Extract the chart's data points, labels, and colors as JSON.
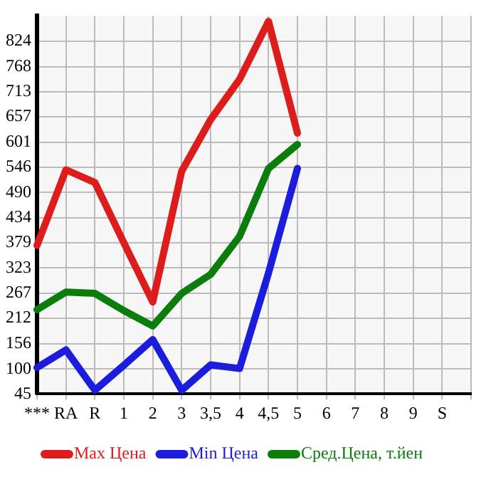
{
  "chart_data": {
    "type": "line",
    "categories": [
      "***",
      "RA",
      "R",
      "1",
      "2",
      "3",
      "3,5",
      "4",
      "4,5",
      "5",
      "6",
      "7",
      "8",
      "9",
      "S",
      null
    ],
    "ylim": [
      45,
      880
    ],
    "yticks": [
      45,
      100,
      156,
      212,
      267,
      323,
      379,
      434,
      490,
      546,
      601,
      657,
      713,
      768,
      824
    ],
    "grid": true,
    "legend": "bottom",
    "marker": "none",
    "line_style": "solid",
    "series": [
      {
        "name": "Max Цена",
        "color": "#dd1c1c",
        "values": [
          373,
          540,
          512,
          379,
          248,
          537,
          651,
          740,
          868,
          621,
          null,
          null,
          null,
          null,
          null,
          null
        ]
      },
      {
        "name": "Min Цена",
        "color": "#1c1cdd",
        "values": [
          103,
          142,
          53,
          108,
          165,
          53,
          109,
          101,
          312,
          543,
          null,
          null,
          null,
          null,
          null,
          null
        ]
      },
      {
        "name": "Сред.Цена, т.йен",
        "color": "#0a7d0a",
        "values": [
          231,
          270,
          267,
          229,
          195,
          267,
          309,
          393,
          543,
          596,
          null,
          null,
          null,
          null,
          null,
          null
        ]
      }
    ]
  }
}
